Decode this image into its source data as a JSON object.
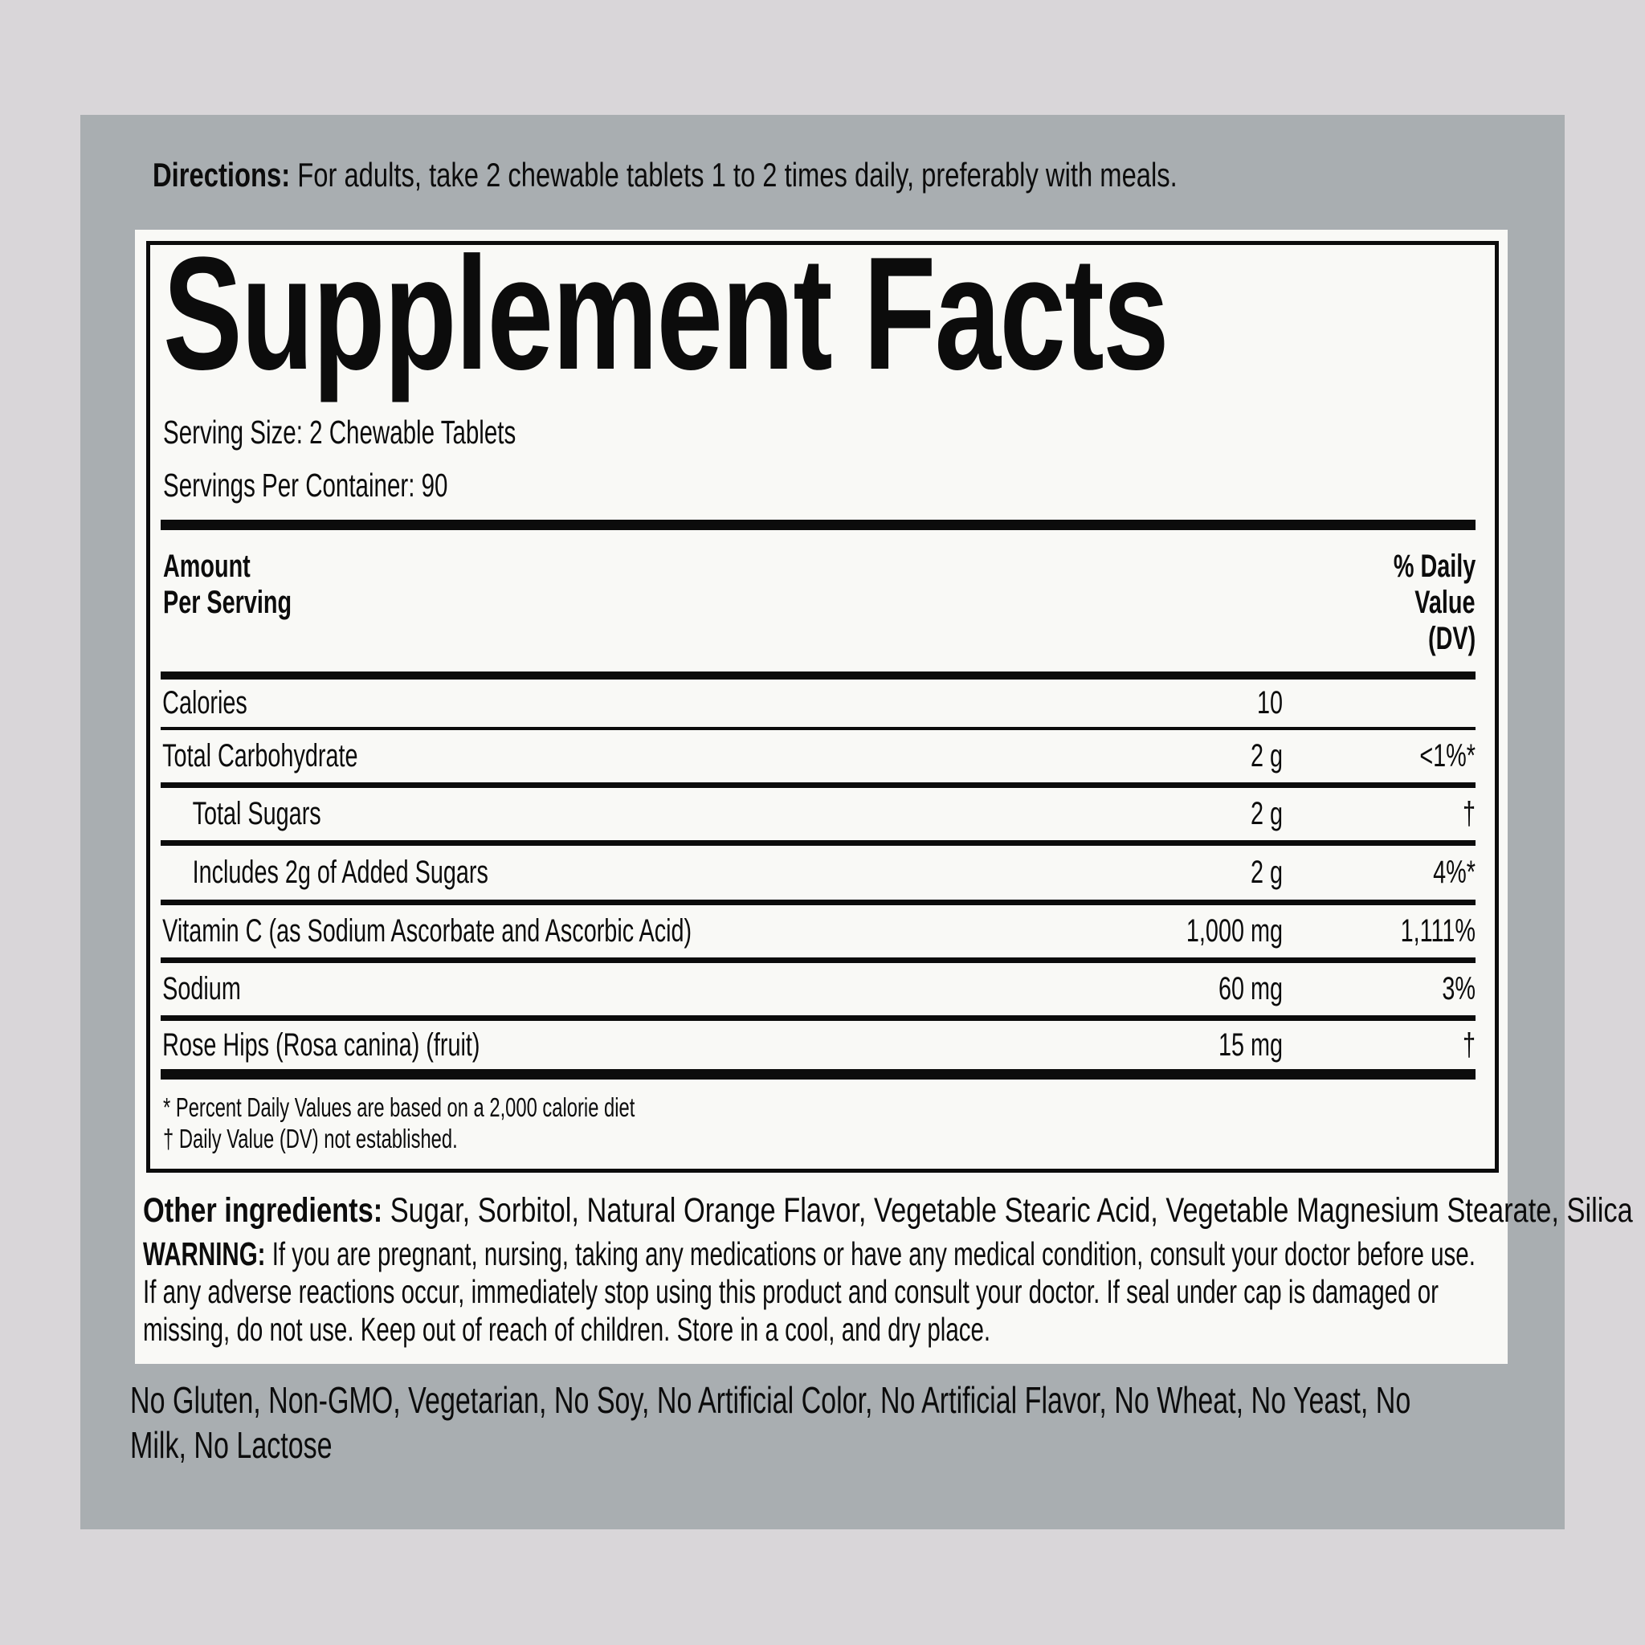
{
  "colors": {
    "outer-bg": "#d9d6d9",
    "panel-bg": "#a9aeb1",
    "label-bg": "#f9f9f6",
    "ink": "#0c0c0c"
  },
  "directions": {
    "label": "Directions: ",
    "text": "For adults, take 2 chewable tablets 1 to 2 times daily, preferably with meals."
  },
  "facts": {
    "title": "Supplement Facts",
    "serving_size": "Serving Size: 2 Chewable Tablets",
    "servings_per_container": "Servings Per Container: 90",
    "header": {
      "left": [
        "Amount",
        "Per Serving"
      ],
      "right": [
        "% Daily",
        "Value",
        "(DV)"
      ]
    },
    "rows": [
      {
        "name": "Calories",
        "amount": "10",
        "dv": "",
        "indent": false
      },
      {
        "name": "Total Carbohydrate",
        "amount": "2 g",
        "dv": "<1%*",
        "indent": false
      },
      {
        "name": "Total Sugars",
        "amount": "2 g",
        "dv": "†",
        "indent": true
      },
      {
        "name": "Includes 2g of Added Sugars",
        "amount": "2 g",
        "dv": "4%*",
        "indent": true
      },
      {
        "name": "Vitamin C (as Sodium Ascorbate and Ascorbic Acid)",
        "amount": "1,000 mg",
        "dv": "1,111%",
        "indent": false
      },
      {
        "name": "Sodium",
        "amount": "60 mg",
        "dv": "3%",
        "indent": false
      },
      {
        "name": "Rose Hips (Rosa canina) (fruit)",
        "amount": "15 mg",
        "dv": "†",
        "indent": false
      }
    ],
    "footnotes": [
      "* Percent Daily Values are based on a 2,000 calorie diet",
      "† Daily Value (DV) not established."
    ]
  },
  "other_ingredients": {
    "label": "Other ingredients: ",
    "text": "Sugar, Sorbitol, Natural Orange Flavor, Vegetable Stearic Acid, Vegetable Magnesium Stearate, Silica"
  },
  "warning": {
    "label": "WARNING: ",
    "text": "If you are pregnant, nursing, taking any medications or have any medical condition, consult your doctor before use. If any adverse reactions occur, immediately stop using this product and consult your doctor. If seal under cap is damaged or missing, do not use. Keep out of reach of children. Store in a cool, and dry place."
  },
  "claims": "No Gluten, Non-GMO, Vegetarian, No Soy, No Artificial Color, No Artificial Flavor, No Wheat, No Yeast, No Milk, No Lactose"
}
